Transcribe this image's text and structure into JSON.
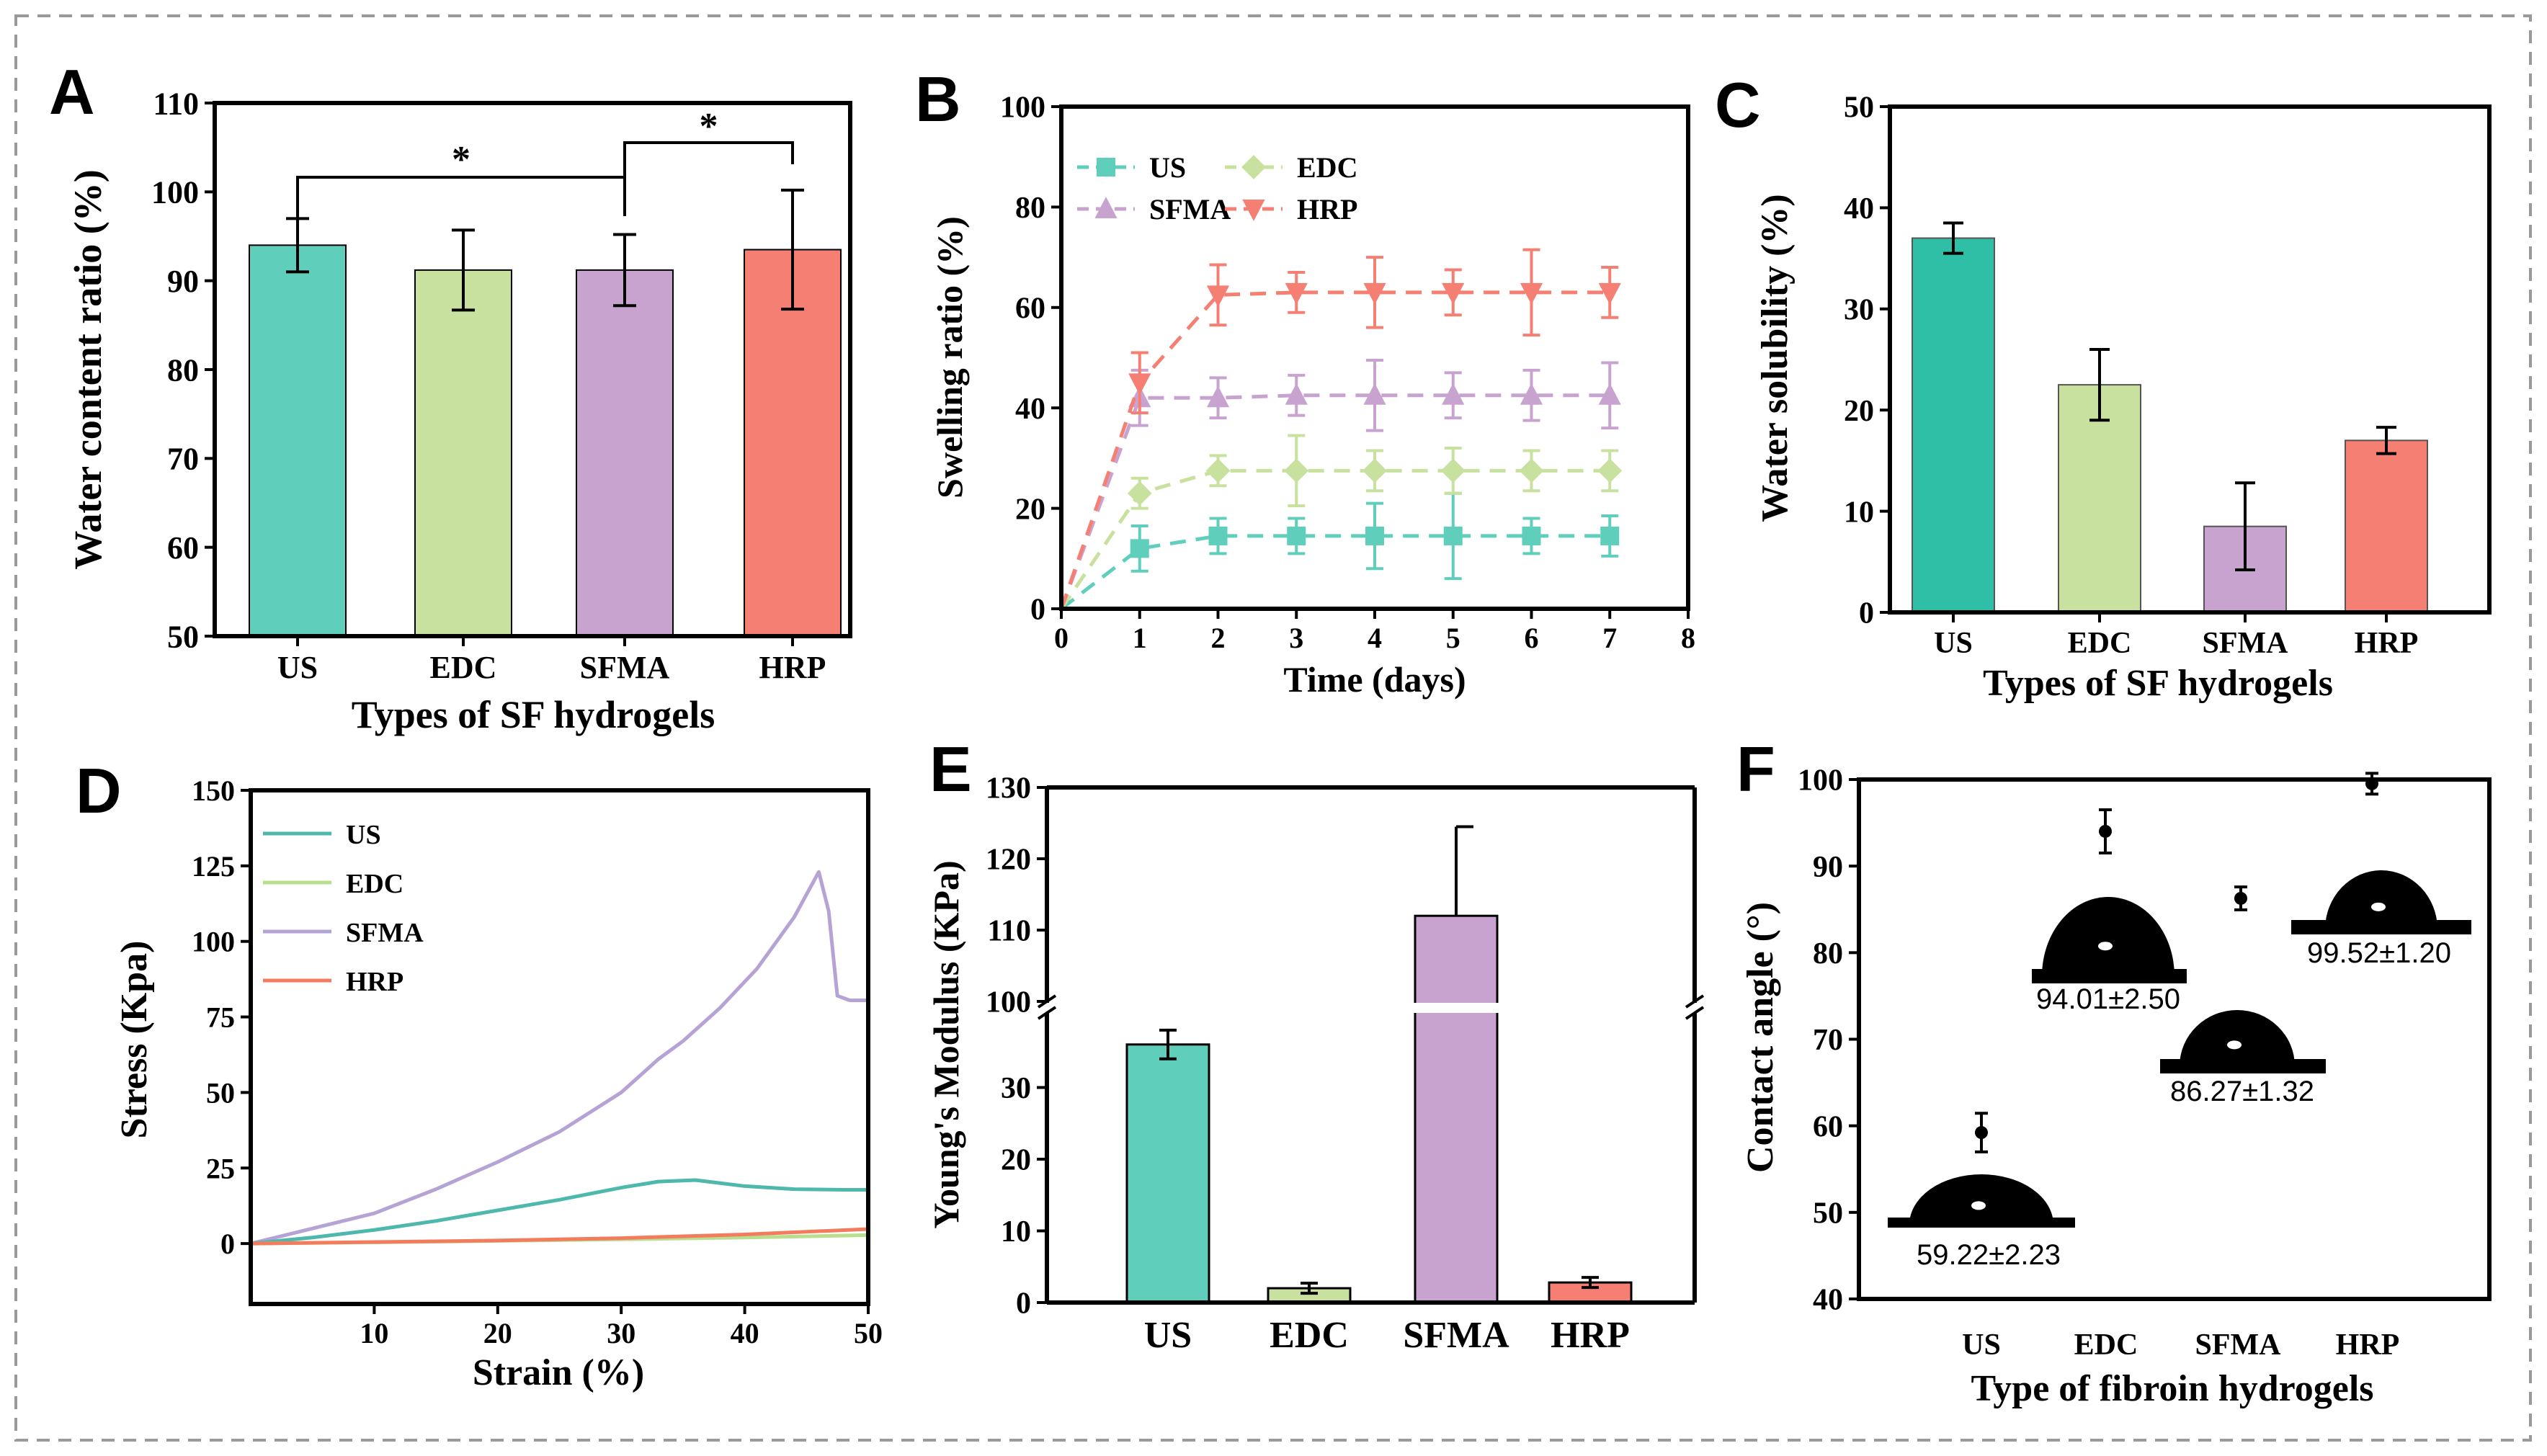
{
  "colors": {
    "US": "#5fcfbb",
    "EDC": "#c8e19f",
    "SFMA": "#c9a3d0",
    "HRP": "#f47f72",
    "US_bar_C": "#2fbfa7",
    "US_line_D": "#4db8ab",
    "SFMA_line_D": "#b5a3d6",
    "HRP_line_D": "#f47c5e",
    "EDC_line_D": "#b8df8e"
  },
  "chart_data": [
    {
      "panel": "A",
      "type": "bar",
      "categories": [
        "US",
        "EDC",
        "SFMA",
        "HRP"
      ],
      "values": [
        94.0,
        91.2,
        91.2,
        93.5
      ],
      "errors": [
        3.0,
        4.5,
        4.0,
        6.7
      ],
      "xlabel": "Types of SF hydrogels",
      "ylabel": "Water content ratio (%)",
      "ylim": [
        50,
        110
      ],
      "yticks": [
        "50",
        "60",
        "70",
        "80",
        "90",
        "100",
        "110"
      ],
      "significance": [
        {
          "from": "US",
          "to": "SFMA",
          "label": "*"
        },
        {
          "from": "SFMA",
          "to": "HRP",
          "label": "*"
        }
      ]
    },
    {
      "panel": "B",
      "type": "line",
      "x": [
        0,
        1,
        2,
        3,
        4,
        5,
        6,
        7
      ],
      "series": [
        {
          "name": "US",
          "marker": "square",
          "values": [
            0,
            12,
            14.5,
            14.5,
            14.5,
            14.5,
            14.5,
            14.5
          ],
          "errors": [
            0,
            4.5,
            3.5,
            3.5,
            6.5,
            8.5,
            3.5,
            4
          ]
        },
        {
          "name": "EDC",
          "marker": "diamond",
          "values": [
            0,
            23,
            27.5,
            27.5,
            27.5,
            27.5,
            27.5,
            27.5
          ],
          "errors": [
            0,
            3,
            3,
            7,
            4,
            4.5,
            4,
            4
          ]
        },
        {
          "name": "SFMA",
          "marker": "triangle-up",
          "values": [
            0,
            42,
            42,
            42.5,
            42.5,
            42.5,
            42.5,
            42.5
          ],
          "errors": [
            0,
            5.5,
            4,
            4,
            7,
            4.5,
            5,
            6.5
          ]
        },
        {
          "name": "HRP",
          "marker": "triangle-down",
          "values": [
            0,
            45,
            62.5,
            63,
            63,
            63,
            63,
            63
          ],
          "errors": [
            0,
            6,
            6,
            4,
            7,
            4.5,
            8.5,
            5
          ]
        }
      ],
      "xlabel": "Time (days)",
      "ylabel": "Swelling ratio (%)",
      "xlim": [
        0,
        8
      ],
      "ylim": [
        0,
        100
      ],
      "xticks": [
        "0",
        "1",
        "2",
        "3",
        "4",
        "5",
        "6",
        "7",
        "8"
      ],
      "yticks": [
        "0",
        "20",
        "40",
        "60",
        "80",
        "100"
      ],
      "legend": [
        "US",
        "EDC",
        "SFMA",
        "HRP"
      ]
    },
    {
      "panel": "C",
      "type": "bar",
      "categories": [
        "US",
        "EDC",
        "SFMA",
        "HRP"
      ],
      "values": [
        37,
        22.5,
        8.5,
        17
      ],
      "errors": [
        1.5,
        3.5,
        4.3,
        1.3
      ],
      "xlabel": "Types of SF hydrogels",
      "ylabel": "Water solubility (%)",
      "ylim": [
        0,
        50
      ],
      "yticks": [
        "0",
        "10",
        "20",
        "30",
        "40",
        "50"
      ]
    },
    {
      "panel": "D",
      "type": "line",
      "series": [
        {
          "name": "US",
          "points": [
            [
              0,
              0
            ],
            [
              5,
              2
            ],
            [
              10,
              4.5
            ],
            [
              15,
              7.5
            ],
            [
              20,
              11
            ],
            [
              25,
              14.5
            ],
            [
              30,
              18.5
            ],
            [
              33,
              20.5
            ],
            [
              36,
              21
            ],
            [
              40,
              19
            ],
            [
              44,
              18
            ],
            [
              48,
              17.8
            ],
            [
              50,
              17.8
            ]
          ]
        },
        {
          "name": "EDC",
          "points": [
            [
              0,
              0
            ],
            [
              10,
              0.4
            ],
            [
              20,
              0.9
            ],
            [
              30,
              1.4
            ],
            [
              40,
              2
            ],
            [
              50,
              2.8
            ]
          ]
        },
        {
          "name": "SFMA",
          "points": [
            [
              0,
              0
            ],
            [
              5,
              5
            ],
            [
              10,
              10
            ],
            [
              15,
              18
            ],
            [
              20,
              27
            ],
            [
              25,
              37
            ],
            [
              30,
              50
            ],
            [
              33,
              61
            ],
            [
              35,
              67
            ],
            [
              38,
              78
            ],
            [
              41,
              91
            ],
            [
              44,
              108
            ],
            [
              46,
              123
            ],
            [
              46.8,
              110
            ],
            [
              47.5,
              82
            ],
            [
              48.5,
              80.5
            ],
            [
              50,
              80.5
            ]
          ]
        },
        {
          "name": "HRP",
          "points": [
            [
              0,
              0
            ],
            [
              10,
              0.5
            ],
            [
              20,
              1
            ],
            [
              30,
              1.8
            ],
            [
              40,
              3
            ],
            [
              50,
              4.8
            ]
          ]
        }
      ],
      "xlabel": "Strain (%)",
      "ylabel": "Stress (Kpa)",
      "xlim": [
        0,
        50
      ],
      "ylim": [
        -20,
        150
      ],
      "xticks": [
        "10",
        "20",
        "30",
        "40",
        "50"
      ],
      "yticks": [
        "0",
        "25",
        "50",
        "75",
        "100",
        "125",
        "150"
      ],
      "legend": [
        "US",
        "EDC",
        "SFMA",
        "HRP"
      ]
    },
    {
      "panel": "E",
      "type": "bar",
      "categories": [
        "US",
        "EDC",
        "SFMA",
        "HRP"
      ],
      "values": [
        36,
        2,
        112,
        2.8
      ],
      "errors": [
        2,
        0.7,
        12.5,
        0.7
      ],
      "xlabel": "",
      "ylabel": "Young's Modulus (KPa)",
      "ylim": [
        0,
        130
      ],
      "axis_break": [
        40,
        100
      ],
      "yticks": [
        "0",
        "10",
        "20",
        "30",
        "100",
        "110",
        "120",
        "130"
      ]
    },
    {
      "panel": "F",
      "type": "scatter",
      "categories": [
        "US",
        "EDC",
        "SFMA",
        "HRP"
      ],
      "values": [
        59.22,
        94.01,
        86.27,
        99.52
      ],
      "errors": [
        2.23,
        2.5,
        1.32,
        1.2
      ],
      "annotations": [
        "59.22±2.23",
        "94.01±2.50",
        "86.27±1.32",
        "99.52±1.20"
      ],
      "xlabel": "Type of fibroin hydrogels",
      "ylabel": "Contact angle (°)",
      "ylim": [
        40,
        100
      ],
      "yticks": [
        "40",
        "50",
        "60",
        "70",
        "80",
        "90",
        "100"
      ]
    }
  ],
  "panel_labels": [
    "A",
    "B",
    "C",
    "D",
    "E",
    "F"
  ]
}
